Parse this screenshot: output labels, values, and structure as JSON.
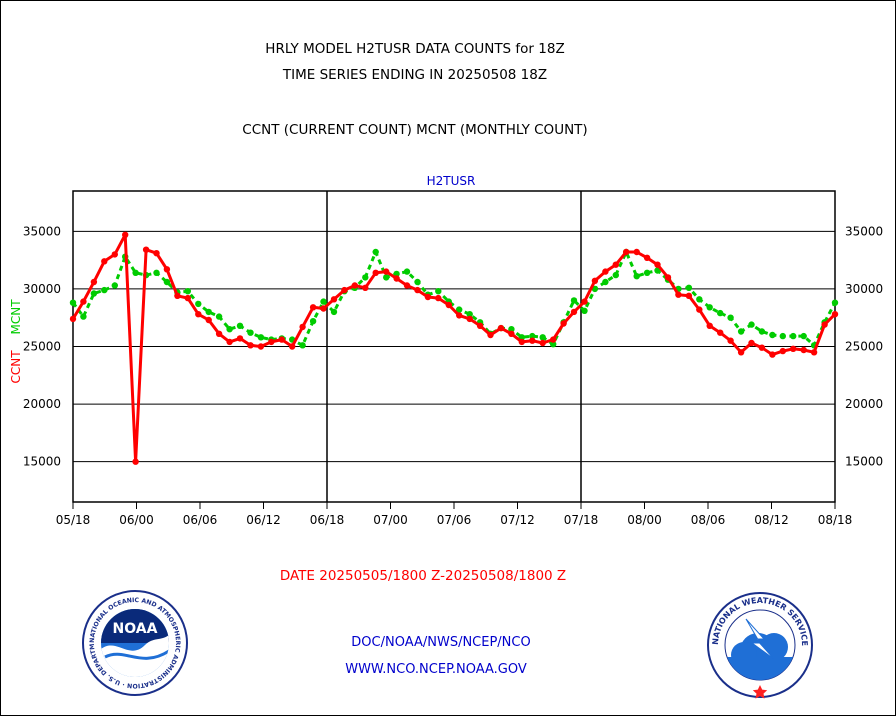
{
  "header": {
    "title_line1": "HRLY MODEL H2TUSR DATA COUNTS for 18Z",
    "title_line2": "TIME SERIES ENDING IN 20250508 18Z",
    "subtitle": "CCNT (CURRENT COUNT) MCNT (MONTHLY COUNT)"
  },
  "footer": {
    "date_range": "DATE 20250505/1800 Z-20250508/1800 Z",
    "org_line": "DOC/NOAA/NWS/NCEP/NCO",
    "url_line": "WWW.NCO.NCEP.NOAA.GOV"
  },
  "logos": {
    "left": {
      "text": "NOAA",
      "ring_text": "NATIONAL OCEANIC AND ATMOSPHERIC ADMINISTRATION · U.S. DEPARTMENT OF COMMERCE"
    },
    "right": {
      "ring_text": "NATIONAL WEATHER SERVICE"
    }
  },
  "colors": {
    "ccnt": "#ff0000",
    "mcnt": "#00cc00",
    "panel_title": "#0000cc",
    "footer_text": "#0000cc",
    "date_text": "#ff0000"
  },
  "chart_data": {
    "type": "line",
    "panel_title": "H2TUSR",
    "ylabel_ccnt": "CCNT",
    "ylabel_mcnt": "MCNT",
    "ylim": [
      11500,
      38500
    ],
    "yticks": [
      15000,
      20000,
      25000,
      30000,
      35000
    ],
    "ytick_labels": [
      "15000",
      "20000",
      "25000",
      "30000",
      "35000"
    ],
    "x_tick_labels": [
      "05/18",
      "06/00",
      "06/06",
      "06/12",
      "06/18",
      "07/00",
      "07/06",
      "07/12",
      "07/18",
      "08/00",
      "08/06",
      "08/12",
      "08/18"
    ],
    "x_unit": "hours from 05/18",
    "xlim": [
      0,
      72
    ],
    "day_separators": [
      24,
      48
    ],
    "grid": "horizontal",
    "series": [
      {
        "name": "CCNT",
        "values": [
          27400,
          28900,
          30600,
          32400,
          33000,
          34700,
          15000,
          33400,
          33100,
          31700,
          29400,
          29200,
          27800,
          27300,
          26100,
          25400,
          25700,
          25100,
          25000,
          25400,
          25600,
          25000,
          26700,
          28400,
          28300,
          29100,
          29900,
          30300,
          30100,
          31400,
          31500,
          30900,
          30300,
          29900,
          29300,
          29200,
          28600,
          27700,
          27400,
          26800,
          26000,
          26600,
          26100,
          25400,
          25500,
          25300,
          25600,
          27000,
          28000,
          28900,
          30700,
          31500,
          32100,
          33200,
          33200,
          32700,
          32100,
          31000,
          29500,
          29400,
          28200,
          26800,
          26200,
          25500,
          24500,
          25300,
          24900,
          24300,
          24600,
          24800,
          24700,
          24500,
          26900,
          27800
        ]
      },
      {
        "name": "MCNT",
        "values": [
          28800,
          27600,
          29600,
          29900,
          30300,
          32800,
          31400,
          31200,
          31400,
          30600,
          29700,
          29800,
          28700,
          28000,
          27600,
          26500,
          26800,
          26200,
          25800,
          25600,
          25700,
          25600,
          25100,
          27200,
          28900,
          28000,
          29800,
          30100,
          31000,
          33200,
          31000,
          31300,
          31500,
          30600,
          29500,
          29800,
          28900,
          28200,
          27800,
          27100,
          26100,
          26600,
          26500,
          25800,
          25900,
          25800,
          25200,
          27100,
          29000,
          28100,
          30000,
          30600,
          31200,
          33200,
          31100,
          31400,
          31600,
          30800,
          30000,
          30100,
          29100,
          28400,
          27900,
          27500,
          26300,
          26900,
          26300,
          26000,
          25900,
          25900,
          25900,
          25100,
          27100,
          28800
        ]
      }
    ]
  }
}
